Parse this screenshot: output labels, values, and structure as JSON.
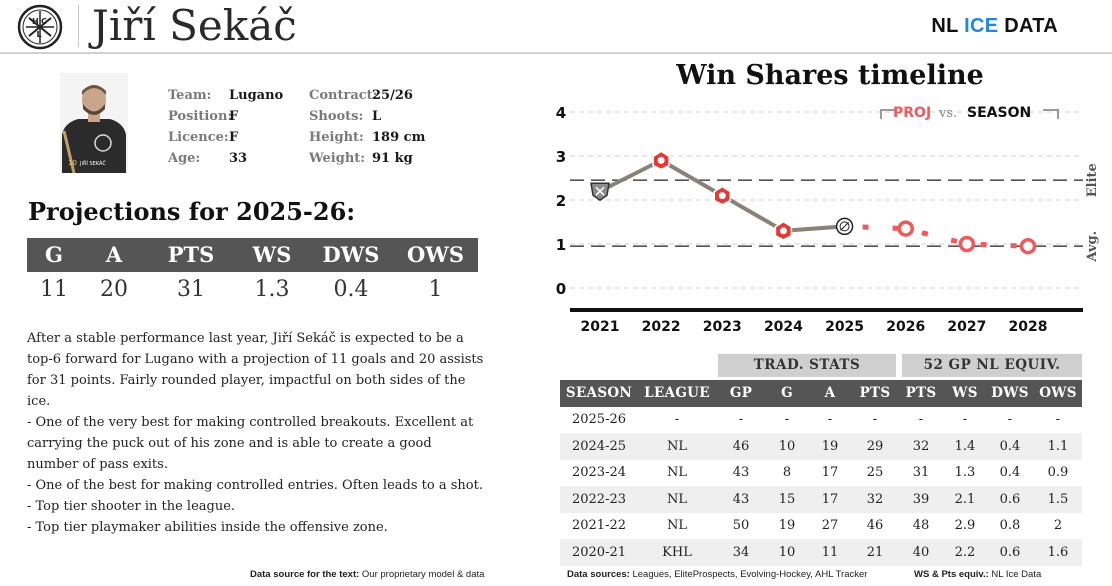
{
  "header": {
    "player_name": "Jiří Sekáč",
    "team_logo_icon": "lugano-hcl-logo-icon",
    "brand": {
      "part1": "NL ",
      "part2": "ICE",
      "part3": " DATA",
      "accent_color": "#1e88e5"
    }
  },
  "bio": {
    "photo_icon": "player-photo",
    "fields": [
      {
        "label": "Team:",
        "value": "Lugano"
      },
      {
        "label": "Position:",
        "value": "F"
      },
      {
        "label": "Licence:",
        "value": "F"
      },
      {
        "label": "Age:",
        "value": "33"
      },
      {
        "label": "Contract:",
        "value": "25/26"
      },
      {
        "label": "Shoots:",
        "value": "L"
      },
      {
        "label": "Height:",
        "value": "189 cm"
      },
      {
        "label": "Weight:",
        "value": "91 kg"
      }
    ]
  },
  "projections": {
    "title": "Projections for 2025-26:",
    "headers": [
      "G",
      "A",
      "PTS",
      "WS",
      "DWS",
      "OWS"
    ],
    "values": [
      "11",
      "20",
      "31",
      "1.3",
      "0.4",
      "1"
    ]
  },
  "description": {
    "paragraphs": [
      "After a stable performance last year, Jiří Sekáč is expected to be a top-6 forward for Lugano with a projection of 11 goals and 20 assists for 31 points. Fairly rounded player, impactful on both sides of the ice.",
      "- One of the very best for making controlled breakouts. Excellent at carrying the puck out of his zone and is able to create a good number of pass exits.",
      "- One of the best for making controlled entries. Often leads to a shot.",
      "- Top tier shooter in the league.",
      "- Top tier playmaker abilities inside the offensive zone."
    ]
  },
  "footnotes": {
    "text_source_label": "Data source for the text:",
    "text_source_value": "Our proprietary model & data",
    "data_sources_label": "Data sources:",
    "data_sources_value": "Leagues, EliteProspects, Evolving-Hockey, AHL Tracker",
    "equiv_label": "WS & Pts equiv.:",
    "equiv_value": "NL Ice Data"
  },
  "chart_data": {
    "type": "line",
    "title": "Win Shares timeline",
    "x": [
      2021,
      2022,
      2023,
      2024,
      2025,
      2026,
      2027,
      2028
    ],
    "xlim": [
      2021,
      2028
    ],
    "ylim": [
      0,
      4
    ],
    "yticks": [
      0,
      1,
      2,
      3,
      4
    ],
    "grid": true,
    "legend_position": "top-right",
    "legend": {
      "proj_label": "PROJ",
      "vs_label": "vs.",
      "season_label": "SEASON"
    },
    "series": [
      {
        "name": "SEASON",
        "color": "#8a8178",
        "points": [
          {
            "x": 2021,
            "y": 2.2,
            "marker": "khl-logo-icon"
          },
          {
            "x": 2022,
            "y": 2.9,
            "marker": "nl-logo-icon"
          },
          {
            "x": 2023,
            "y": 2.1,
            "marker": "nl-logo-icon"
          },
          {
            "x": 2024,
            "y": 1.3,
            "marker": "nl-logo-icon"
          },
          {
            "x": 2025,
            "y": 1.4,
            "marker": "lugano-logo-icon"
          }
        ]
      },
      {
        "name": "PROJ",
        "color": "#f05a5a",
        "points": [
          {
            "x": 2025,
            "y": 1.4
          },
          {
            "x": 2026,
            "y": 1.35
          },
          {
            "x": 2027,
            "y": 1.0
          },
          {
            "x": 2028,
            "y": 0.95
          }
        ]
      }
    ],
    "reference_lines": [
      {
        "label": "Elite",
        "y": 2.45
      },
      {
        "label": "Avg.",
        "y": 0.95
      }
    ]
  },
  "stats_table": {
    "group_headers": [
      "TRAD. STATS",
      "52 GP NL EQUIV."
    ],
    "columns": [
      "SEASON",
      "LEAGUE",
      "GP",
      "G",
      "A",
      "PTS",
      "PTS",
      "WS",
      "DWS",
      "OWS"
    ],
    "rows": [
      [
        "2025-26",
        "-",
        "-",
        "-",
        "-",
        "-",
        "-",
        "-",
        "-",
        "-"
      ],
      [
        "2024-25",
        "NL",
        "46",
        "10",
        "19",
        "29",
        "32",
        "1.4",
        "0.4",
        "1.1"
      ],
      [
        "2023-24",
        "NL",
        "43",
        "8",
        "17",
        "25",
        "31",
        "1.3",
        "0.4",
        "0.9"
      ],
      [
        "2022-23",
        "NL",
        "43",
        "15",
        "17",
        "32",
        "39",
        "2.1",
        "0.6",
        "1.5"
      ],
      [
        "2021-22",
        "NL",
        "50",
        "19",
        "27",
        "46",
        "48",
        "2.9",
        "0.8",
        "2"
      ],
      [
        "2020-21",
        "KHL",
        "34",
        "10",
        "11",
        "21",
        "40",
        "2.2",
        "0.6",
        "1.6"
      ]
    ]
  }
}
